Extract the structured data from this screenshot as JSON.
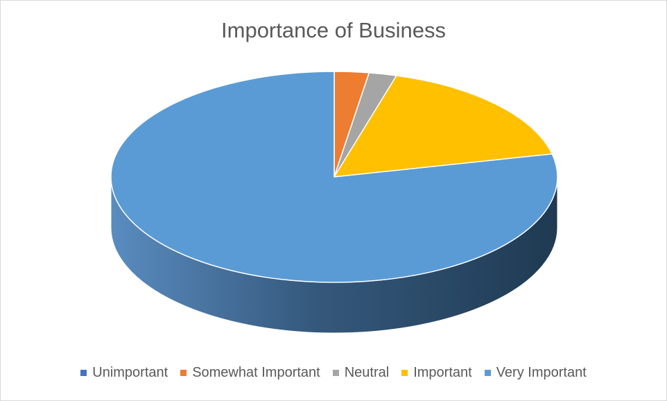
{
  "chart_data": {
    "type": "pie",
    "title": "Importance of Business",
    "categories": [
      "Unimportant",
      "Somewhat Important",
      "Neutral",
      "Important",
      "Very Important"
    ],
    "values": [
      0,
      2.5,
      2,
      17,
      78.5
    ],
    "colors": [
      "#4472c4",
      "#ed7d31",
      "#a5a5a5",
      "#ffc000",
      "#5b9bd5"
    ],
    "legend_position": "bottom",
    "style": "3d"
  }
}
